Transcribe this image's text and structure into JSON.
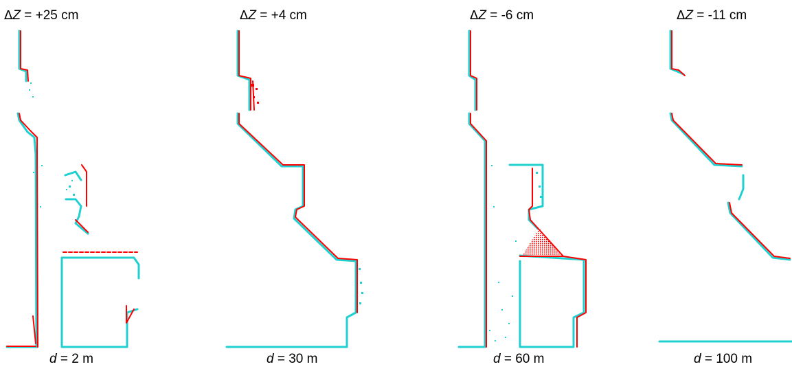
{
  "colors": {
    "reference_points": "#ff0000",
    "measured_points": "#20d0d0"
  },
  "panels": [
    {
      "delta_symbol": "Δ",
      "var": "Z",
      "eq": " = ",
      "dz_value": "+25 cm",
      "d_var": "d",
      "d_eq": " = ",
      "d_value": "2 m"
    },
    {
      "delta_symbol": "Δ",
      "var": "Z",
      "eq": " = ",
      "dz_value": "+4 cm",
      "d_var": "d",
      "d_eq": " = ",
      "d_value": "30 m"
    },
    {
      "delta_symbol": "Δ",
      "var": "Z",
      "eq": " = ",
      "dz_value": "-6 cm",
      "d_var": "d",
      "d_eq": " = ",
      "d_value": "60 m"
    },
    {
      "delta_symbol": "Δ",
      "var": "Z",
      "eq": " = ",
      "dz_value": "-11 cm",
      "d_var": "d",
      "d_eq": " = ",
      "d_value": "100 m"
    }
  ]
}
